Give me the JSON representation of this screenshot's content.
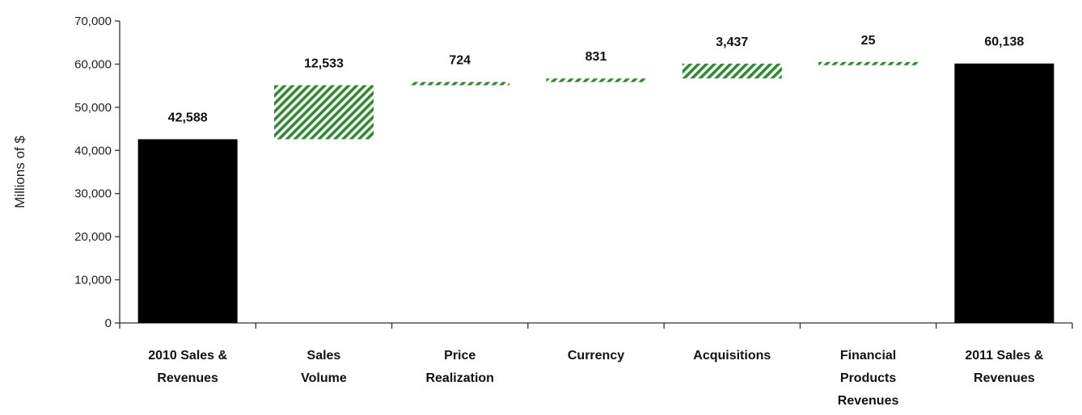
{
  "chart_data": {
    "type": "bar",
    "subtype": "waterfall",
    "ylabel": "Millions of $",
    "ylim": [
      0,
      70000
    ],
    "yticks": [
      "0",
      "10,000",
      "20,000",
      "30,000",
      "40,000",
      "50,000",
      "60,000",
      "70,000"
    ],
    "grid": false,
    "colors": {
      "total": "#000000",
      "increase": "#2e8b2e"
    },
    "categories": [
      [
        "2010 Sales &",
        "Revenues"
      ],
      [
        "Sales",
        "Volume"
      ],
      [
        "Price",
        "Realization"
      ],
      [
        "Currency"
      ],
      [
        "Acquisitions"
      ],
      [
        "Financial",
        "Products",
        "Revenues"
      ],
      [
        "2011 Sales &",
        "Revenues"
      ]
    ],
    "bars": [
      {
        "kind": "total",
        "start": 0,
        "end": 42588,
        "label": "42,588"
      },
      {
        "kind": "increase",
        "start": 42588,
        "end": 55121,
        "label": "12,533"
      },
      {
        "kind": "increase",
        "start": 55121,
        "end": 55845,
        "label": "724"
      },
      {
        "kind": "increase",
        "start": 55845,
        "end": 56676,
        "label": "831"
      },
      {
        "kind": "increase",
        "start": 56676,
        "end": 60113,
        "label": "3,437"
      },
      {
        "kind": "increase",
        "start": 60113,
        "end": 60138,
        "label": "25"
      },
      {
        "kind": "total",
        "start": 0,
        "end": 60138,
        "label": "60,138"
      }
    ]
  }
}
